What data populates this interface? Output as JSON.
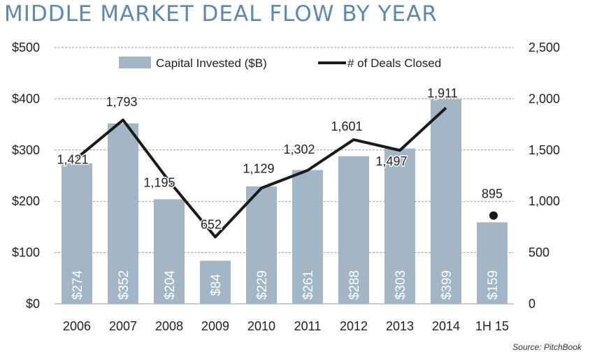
{
  "title": "MIDDLE MARKET DEAL FLOW BY YEAR",
  "source": "Source: PitchBook",
  "colors": {
    "title": "#5c89b1",
    "bar": "#a3b6c5",
    "line": "#1a1a1a",
    "grid": "#9a9a9a"
  },
  "chart_data": {
    "type": "bar",
    "categories": [
      "2006",
      "2007",
      "2008",
      "2009",
      "2010",
      "2011",
      "2012",
      "2013",
      "2014",
      "1H 15"
    ],
    "series": [
      {
        "name": "Capital Invested ($B)",
        "type": "bar",
        "axis": "left",
        "values": [
          274,
          352,
          204,
          84,
          229,
          261,
          288,
          303,
          399,
          159
        ],
        "labels": [
          "$274",
          "$352",
          "$204",
          "$84",
          "$229",
          "$261",
          "$288",
          "$303",
          "$399",
          "$159"
        ]
      },
      {
        "name": "# of Deals Closed",
        "type": "line",
        "axis": "right",
        "values": [
          1421,
          1793,
          1195,
          652,
          1129,
          1302,
          1601,
          1497,
          1911,
          895
        ],
        "labels": [
          "1,421",
          "1,793",
          "1,195",
          "652",
          "1,129",
          "1,302",
          "1,601",
          "1,497",
          "1,911",
          "895"
        ],
        "line_points": 9,
        "last_point_marker": "dot"
      }
    ],
    "y_left": {
      "ticks": [
        "$0",
        "$100",
        "$200",
        "$300",
        "$400",
        "$500"
      ],
      "ylim": [
        0,
        500
      ]
    },
    "y_right": {
      "ticks": [
        "0",
        "500",
        "1,000",
        "1,500",
        "2,000",
        "2,500"
      ],
      "ylim": [
        0,
        2500
      ]
    },
    "grid": true,
    "legend": "top-center"
  }
}
